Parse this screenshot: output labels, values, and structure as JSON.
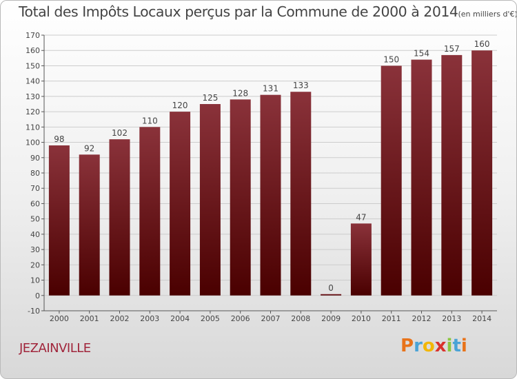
{
  "header": {
    "title": "Total des Impôts Locaux perçus par la Commune de 2000 à 2014",
    "unit": "(en milliers d'€)"
  },
  "footer": {
    "commune": "JEZAINVILLE",
    "brand_letters": [
      "P",
      "r",
      "o",
      "x",
      "i",
      "t",
      "i"
    ],
    "brand_colors": [
      "#e8731a",
      "#4aa3d6",
      "#f2b705",
      "#d9322c",
      "#8cc63f",
      "#4aa3d6",
      "#e8731a"
    ]
  },
  "colors": {
    "bar_top": "#8a323a",
    "bar_bottom": "#4a0000",
    "grid": "#cccccc",
    "axis": "#555555"
  },
  "chart_data": {
    "type": "bar",
    "categories": [
      "2000",
      "2001",
      "2002",
      "2003",
      "2004",
      "2005",
      "2006",
      "2007",
      "2008",
      "2009",
      "2010",
      "2011",
      "2012",
      "2013",
      "2014"
    ],
    "values": [
      98,
      92,
      102,
      110,
      120,
      125,
      128,
      131,
      133,
      0,
      47,
      150,
      154,
      157,
      160
    ],
    "data_labels": [
      "98",
      "92",
      "102",
      "110",
      "120",
      "125",
      "128",
      "131",
      "133",
      "0",
      "47",
      "150",
      "154",
      "157",
      "160"
    ],
    "ylim": [
      -10,
      170
    ],
    "yticks": [
      -10,
      0,
      10,
      20,
      30,
      40,
      50,
      60,
      70,
      80,
      90,
      100,
      110,
      120,
      130,
      140,
      150,
      160,
      170
    ],
    "title": "Total des Impôts Locaux perçus par la Commune de 2000 à 2014",
    "xlabel": "",
    "ylabel": "",
    "grid": true,
    "legend": "none"
  }
}
